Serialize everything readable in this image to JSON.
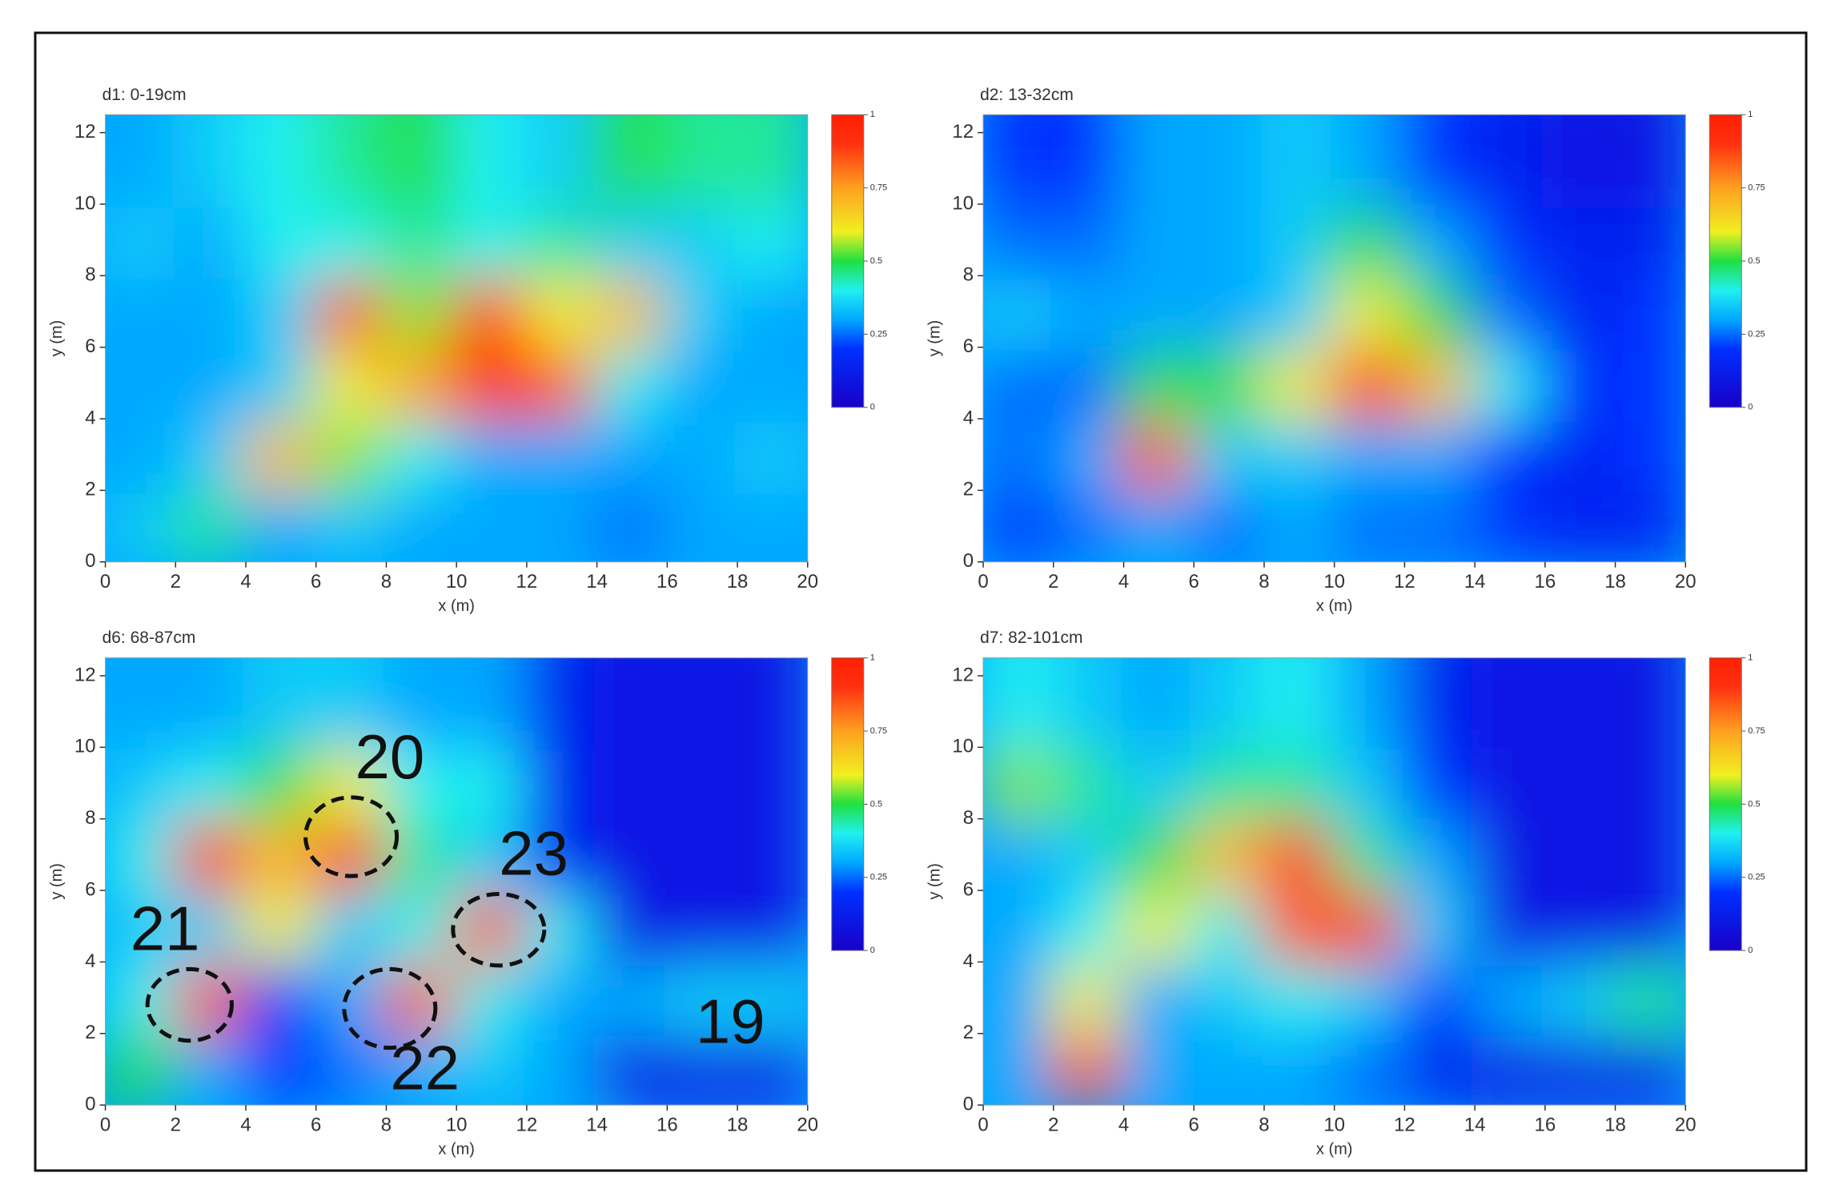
{
  "chart_data": [
    {
      "type": "heatmap",
      "title": "d1: 0-19cm",
      "xlabel": "x (m)",
      "ylabel": "y (m)",
      "x": [
        1,
        3,
        5,
        7,
        9,
        11,
        13,
        15,
        17,
        19
      ],
      "y": [
        1,
        3,
        5,
        7,
        9,
        11
      ],
      "z": [
        [
          0.35,
          0.45,
          0.3,
          0.35,
          0.3,
          0.3,
          0.3,
          0.25,
          0.3,
          0.3
        ],
        [
          0.3,
          0.35,
          0.7,
          0.55,
          0.4,
          0.3,
          0.3,
          0.3,
          0.3,
          0.35
        ],
        [
          0.3,
          0.3,
          0.35,
          0.6,
          0.75,
          1,
          0.85,
          0.4,
          0.3,
          0.3
        ],
        [
          0.3,
          0.3,
          0.35,
          0.85,
          0.55,
          0.9,
          0.6,
          0.7,
          0.35,
          0.3
        ],
        [
          0.35,
          0.3,
          0.4,
          0.4,
          0.45,
          0.4,
          0.45,
          0.35,
          0.35,
          0.4
        ],
        [
          0.3,
          0.35,
          0.4,
          0.45,
          0.5,
          0.4,
          0.35,
          0.5,
          0.45,
          0.45
        ]
      ],
      "xlim": [
        0,
        20
      ],
      "ylim": [
        0,
        12.5
      ],
      "xticks": [
        0,
        2,
        4,
        6,
        8,
        10,
        12,
        14,
        16,
        18,
        20
      ],
      "yticks": [
        0,
        2,
        4,
        6,
        8,
        10,
        12
      ],
      "zlim": [
        0,
        1
      ],
      "zticks": [
        0,
        0.25,
        0.5,
        0.75,
        1
      ]
    },
    {
      "type": "heatmap",
      "title": "d2: 13-32cm",
      "xlabel": "x (m)",
      "ylabel": "y (m)",
      "x": [
        1,
        3,
        5,
        7,
        9,
        11,
        13,
        15,
        17,
        19
      ],
      "y": [
        1,
        3,
        5,
        7,
        9,
        11
      ],
      "z": [
        [
          0.2,
          0.25,
          0.3,
          0.25,
          0.3,
          0.25,
          0.25,
          0.2,
          0.15,
          0.15
        ],
        [
          0.25,
          0.3,
          0.85,
          0.35,
          0.35,
          0.3,
          0.3,
          0.2,
          0.15,
          0.2
        ],
        [
          0.25,
          0.25,
          0.5,
          0.5,
          0.6,
          1,
          0.7,
          0.4,
          0.2,
          0.2
        ],
        [
          0.35,
          0.3,
          0.3,
          0.3,
          0.35,
          0.6,
          0.5,
          0.25,
          0.15,
          0.2
        ],
        [
          0.25,
          0.25,
          0.3,
          0.3,
          0.35,
          0.5,
          0.3,
          0.2,
          0.15,
          0.15
        ],
        [
          0.2,
          0.2,
          0.3,
          0.3,
          0.35,
          0.3,
          0.2,
          0.15,
          0.1,
          0.1
        ]
      ],
      "xlim": [
        0,
        20
      ],
      "ylim": [
        0,
        12.5
      ],
      "xticks": [
        0,
        2,
        4,
        6,
        8,
        10,
        12,
        14,
        16,
        18,
        20
      ],
      "yticks": [
        0,
        2,
        4,
        6,
        8,
        10,
        12
      ],
      "zlim": [
        0,
        1
      ],
      "zticks": [
        0,
        0.25,
        0.5,
        0.75,
        1
      ]
    },
    {
      "type": "heatmap",
      "title": "d6: 68-87cm",
      "xlabel": "x (m)",
      "ylabel": "y (m)",
      "x": [
        1,
        3,
        5,
        7,
        9,
        11,
        13,
        15,
        17,
        19
      ],
      "y": [
        1,
        3,
        5,
        7,
        9,
        11
      ],
      "z": [
        [
          0.5,
          0.3,
          0.2,
          0.25,
          0.3,
          0.35,
          0.3,
          0.1,
          0.1,
          0.1
        ],
        [
          0.4,
          0.85,
          0.2,
          0.3,
          0.85,
          0.4,
          0.3,
          0.3,
          0.35,
          0.35
        ],
        [
          0.35,
          0.35,
          0.6,
          0.35,
          0.4,
          0.85,
          0.4,
          0.1,
          0.1,
          0.1
        ],
        [
          0.4,
          0.9,
          0.7,
          0.9,
          0.45,
          0.35,
          0.15,
          0.1,
          0.1,
          0.1
        ],
        [
          0.35,
          0.4,
          0.5,
          0.6,
          0.4,
          0.4,
          0.15,
          0.1,
          0.1,
          0.1
        ],
        [
          0.3,
          0.3,
          0.35,
          0.35,
          0.3,
          0.3,
          0.15,
          0.1,
          0.1,
          0.1
        ]
      ],
      "xlim": [
        0,
        20
      ],
      "ylim": [
        0,
        12.5
      ],
      "xticks": [
        0,
        2,
        4,
        6,
        8,
        10,
        12,
        14,
        16,
        18,
        20
      ],
      "yticks": [
        0,
        2,
        4,
        6,
        8,
        10,
        12
      ],
      "zlim": [
        0,
        1
      ],
      "zticks": [
        0,
        0.25,
        0.5,
        0.75,
        1
      ],
      "annotations": [
        {
          "text": "20",
          "x": 8.1,
          "y": 9.6,
          "ellipse": {
            "x": 7,
            "y": 7.5,
            "rx": 1.3,
            "ry": 1.1
          }
        },
        {
          "text": "21",
          "x": 1.7,
          "y": 4.8,
          "ellipse": {
            "x": 2.4,
            "y": 2.8,
            "rx": 1.2,
            "ry": 1
          }
        },
        {
          "text": "23",
          "x": 12.2,
          "y": 6.9,
          "ellipse": {
            "x": 11.2,
            "y": 4.9,
            "rx": 1.3,
            "ry": 1
          }
        },
        {
          "text": "22",
          "x": 9.1,
          "y": 0.9,
          "ellipse": {
            "x": 8.1,
            "y": 2.7,
            "rx": 1.3,
            "ry": 1.1
          }
        },
        {
          "text": "19",
          "x": 17.8,
          "y": 2.2
        }
      ]
    },
    {
      "type": "heatmap",
      "title": "d7: 82-101cm",
      "xlabel": "x (m)",
      "ylabel": "y (m)",
      "x": [
        1,
        3,
        5,
        7,
        9,
        11,
        13,
        15,
        17,
        19
      ],
      "y": [
        1,
        3,
        5,
        7,
        9,
        11
      ],
      "z": [
        [
          0.3,
          0.85,
          0.3,
          0.3,
          0.3,
          0.25,
          0.15,
          0.1,
          0.1,
          0.1
        ],
        [
          0.3,
          0.6,
          0.3,
          0.35,
          0.4,
          0.35,
          0.2,
          0.3,
          0.35,
          0.45
        ],
        [
          0.3,
          0.4,
          0.6,
          0.4,
          0.85,
          0.9,
          0.35,
          0.1,
          0.1,
          0.1
        ],
        [
          0.3,
          0.35,
          0.5,
          0.7,
          0.9,
          0.45,
          0.3,
          0.1,
          0.1,
          0.1
        ],
        [
          0.55,
          0.45,
          0.35,
          0.45,
          0.45,
          0.35,
          0.2,
          0.1,
          0.1,
          0.1
        ],
        [
          0.4,
          0.35,
          0.3,
          0.35,
          0.4,
          0.3,
          0.15,
          0.1,
          0.1,
          0.1
        ]
      ],
      "xlim": [
        0,
        20
      ],
      "ylim": [
        0,
        12.5
      ],
      "xticks": [
        0,
        2,
        4,
        6,
        8,
        10,
        12,
        14,
        16,
        18,
        20
      ],
      "yticks": [
        0,
        2,
        4,
        6,
        8,
        10,
        12
      ],
      "zlim": [
        0,
        1
      ],
      "zticks": [
        0,
        0.25,
        0.5,
        0.75,
        1
      ]
    }
  ]
}
